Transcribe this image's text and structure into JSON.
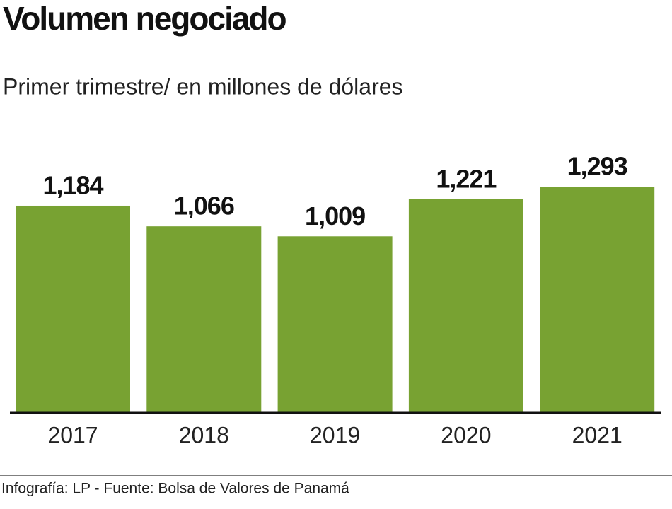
{
  "chart_data": {
    "type": "bar",
    "title": "Volumen negociado",
    "subtitle": "Primer trimestre/ en millones de dólares",
    "categories": [
      "2017",
      "2018",
      "2019",
      "2020",
      "2021"
    ],
    "values": [
      1184,
      1066,
      1009,
      1221,
      1293
    ],
    "value_labels": [
      "1,184",
      "1,066",
      "1,009",
      "1,221",
      "1,293"
    ],
    "color": "#78a232",
    "source": "Infografía: LP - Fuente: Bolsa de Valores de Panamá"
  }
}
